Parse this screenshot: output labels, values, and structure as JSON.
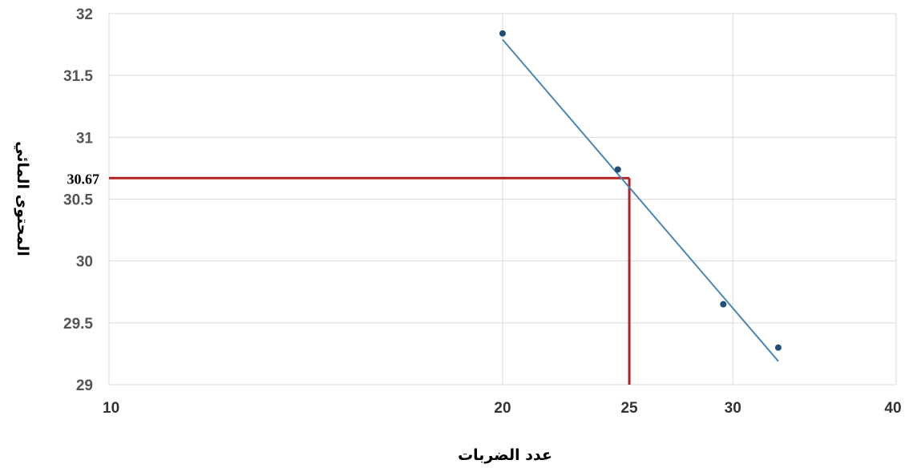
{
  "chart_data": {
    "type": "scatter",
    "x_log_scale": true,
    "xlim": [
      10,
      40
    ],
    "ylim": [
      29,
      32
    ],
    "x_ticks": [
      "10",
      "20",
      "25",
      "30",
      "40"
    ],
    "y_ticks": [
      "29",
      "29.5",
      "30",
      "30.5",
      "31",
      "31.5",
      "32"
    ],
    "xlabel": "عدد الضربات",
    "ylabel": "المحتوى المائي",
    "grid": true,
    "points": [
      {
        "x": 20,
        "y": 31.84
      },
      {
        "x": 24.5,
        "y": 30.74
      },
      {
        "x": 29.5,
        "y": 29.65
      },
      {
        "x": 32.5,
        "y": 29.3
      }
    ],
    "trendline": {
      "x": [
        20,
        32.5
      ],
      "y": [
        31.79,
        29.19
      ]
    },
    "reference": {
      "x": 25,
      "y": 30.67,
      "label": "30.67"
    },
    "colors": {
      "points": "#1f4e79",
      "trendline": "#4a86b4",
      "reference": "#b22222",
      "grid": "#d9d9d9"
    }
  }
}
